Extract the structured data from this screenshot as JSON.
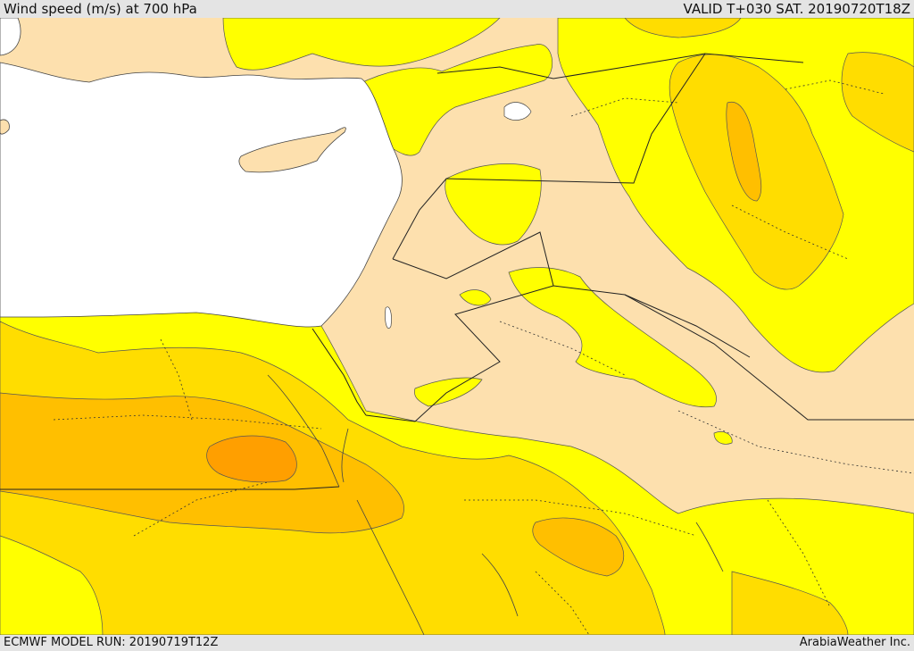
{
  "header": {
    "title": "Wind speed (m/s) at 700 hPa",
    "valid_time": "VALID T+030 SAT. 20190720T18Z"
  },
  "footer": {
    "model_run": "ECMWF MODEL RUN: 20190719T12Z",
    "credit": "ArabiaWeather Inc."
  },
  "map": {
    "variable": "wind speed",
    "units": "m/s",
    "pressure_level_hpa": 700,
    "colors": {
      "sea": "#ffffff",
      "land_calm": "#fde0ae",
      "band_1": "#ffff00",
      "band_2": "#ffdd00",
      "band_3": "#ffbf00",
      "band_4": "#ff9f00"
    }
  }
}
